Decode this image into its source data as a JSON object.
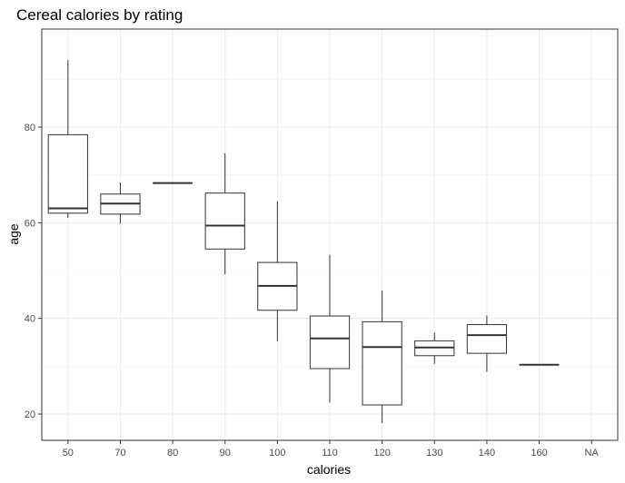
{
  "chart_data": {
    "type": "boxplot",
    "title": "Cereal calories by rating",
    "xlabel": "calories",
    "ylabel": "age",
    "categories": [
      "50",
      "70",
      "80",
      "90",
      "100",
      "110",
      "120",
      "130",
      "140",
      "160",
      "NA"
    ],
    "ylim": [
      14.5,
      100.5
    ],
    "yticks": [
      20,
      40,
      60,
      80
    ],
    "grid": true,
    "boxes": [
      {
        "category": "50",
        "min": 61.0,
        "q1": 62.0,
        "median": 63.0,
        "q3": 78.4,
        "max": 94.0
      },
      {
        "category": "70",
        "min": 59.8,
        "q1": 61.8,
        "median": 64.0,
        "q3": 66.0,
        "max": 68.4
      },
      {
        "category": "80",
        "min": 68.3,
        "q1": 68.3,
        "median": 68.3,
        "q3": 68.3,
        "max": 68.3
      },
      {
        "category": "90",
        "min": 49.2,
        "q1": 54.5,
        "median": 59.4,
        "q3": 66.2,
        "max": 74.5
      },
      {
        "category": "100",
        "min": 35.2,
        "q1": 41.7,
        "median": 46.8,
        "q3": 51.7,
        "max": 64.5
      },
      {
        "category": "110",
        "min": 22.4,
        "q1": 29.5,
        "median": 35.8,
        "q3": 40.5,
        "max": 53.3
      },
      {
        "category": "120",
        "min": 18.1,
        "q1": 21.9,
        "median": 34.0,
        "q3": 39.3,
        "max": 45.8
      },
      {
        "category": "130",
        "min": 30.5,
        "q1": 32.2,
        "median": 33.9,
        "q3": 35.3,
        "max": 37.0
      },
      {
        "category": "140",
        "min": 28.8,
        "q1": 32.7,
        "median": 36.5,
        "q3": 38.7,
        "max": 40.6
      },
      {
        "category": "160",
        "min": 30.3,
        "q1": 30.3,
        "median": 30.3,
        "q3": 30.3,
        "max": 30.3
      }
    ],
    "colors": {
      "box_stroke": "#333333",
      "box_fill": "#ffffff",
      "grid": "#ebebeb",
      "tick_text": "#4d4d4d"
    }
  }
}
